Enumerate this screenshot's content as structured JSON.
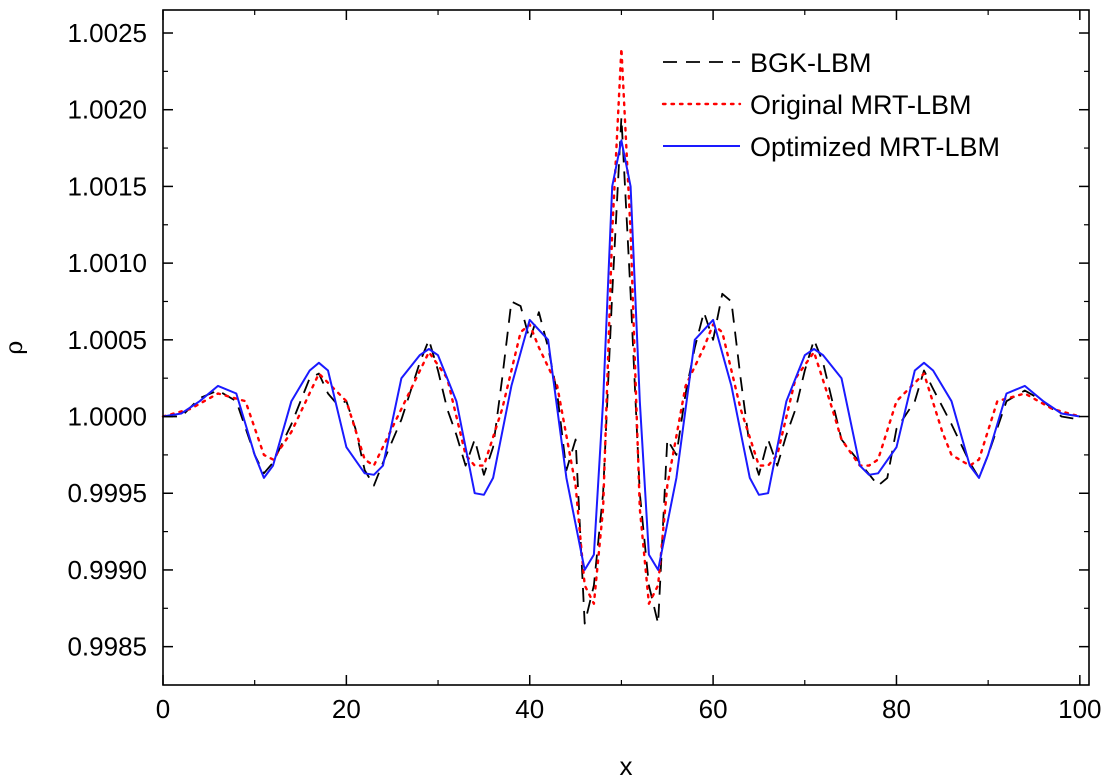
{
  "chart_data": {
    "type": "line",
    "title": "",
    "xlabel": "x",
    "ylabel": "ρ",
    "xlim": [
      0,
      101
    ],
    "ylim": [
      0.99825,
      1.00265
    ],
    "xticks": [
      0,
      20,
      40,
      60,
      80,
      100
    ],
    "xtick_labels": [
      "0",
      "20",
      "40",
      "60",
      "80",
      "100"
    ],
    "yticks": [
      0.9985,
      0.999,
      0.9995,
      1.0,
      1.0005,
      1.001,
      1.0015,
      1.002,
      1.0025
    ],
    "ytick_labels": [
      "0.9985",
      "0.9990",
      "0.9995",
      "1.0000",
      "1.0005",
      "1.0010",
      "1.0015",
      "1.0020",
      "1.0025"
    ],
    "grid": false,
    "legend_position": "top-right",
    "series": [
      {
        "name": "BGK-LBM",
        "color": "#000000",
        "style": "dashed",
        "x": [
          0,
          2,
          4,
          6,
          8,
          10,
          11,
          12,
          14,
          16,
          17,
          18,
          19,
          20,
          21,
          22,
          23,
          24,
          26,
          28,
          29,
          30,
          31,
          32,
          33,
          34,
          35,
          36,
          37,
          38,
          39,
          40,
          41,
          42,
          43,
          44,
          45,
          46,
          47,
          48,
          49,
          50,
          51,
          52,
          53,
          54,
          55,
          56,
          57,
          58,
          59,
          60,
          61,
          62,
          63,
          64,
          65,
          66,
          67,
          68,
          69,
          70,
          71,
          72,
          73,
          74,
          76,
          78,
          79,
          80,
          82,
          83,
          84,
          86,
          88,
          89,
          90,
          92,
          94,
          96,
          98,
          100
        ],
        "values": [
          1.0,
          1.0,
          1.00012,
          1.00017,
          1.0001,
          0.99975,
          0.99963,
          0.9997,
          0.99995,
          1.00025,
          1.00028,
          1.00015,
          1.00008,
          1.0001,
          0.99992,
          0.99965,
          0.99955,
          0.9997,
          0.99998,
          1.00035,
          1.0005,
          1.0003,
          1.00005,
          0.99988,
          0.99968,
          0.99985,
          0.99962,
          0.9998,
          1.00025,
          1.00075,
          1.00072,
          1.0005,
          1.00068,
          1.00045,
          1.00015,
          0.99965,
          0.99985,
          0.99865,
          0.9989,
          0.9995,
          1.0008,
          1.00195,
          1.0008,
          0.9995,
          0.9989,
          0.99865,
          0.99985,
          0.99975,
          1.00015,
          1.00045,
          1.00068,
          1.0005,
          1.0008,
          1.00075,
          1.00025,
          0.9998,
          0.99962,
          0.99985,
          0.99968,
          0.99988,
          1.00005,
          1.0003,
          1.0005,
          1.00035,
          1.0001,
          0.99985,
          0.9997,
          0.99955,
          0.9996,
          0.99992,
          1.0001,
          1.0003,
          1.00018,
          0.99995,
          0.9997,
          0.9996,
          0.99975,
          1.0001,
          1.00017,
          1.0001,
          1.0,
          0.99998
        ]
      },
      {
        "name": "Original MRT-LBM",
        "color": "#ff0000",
        "style": "dotted",
        "x": [
          0,
          3,
          6,
          9,
          11,
          12,
          14,
          17,
          20,
          22,
          23,
          26,
          29,
          31,
          33,
          34,
          35,
          37,
          39,
          40,
          41,
          43,
          45,
          46,
          47,
          48,
          49,
          50,
          51,
          52,
          53,
          54,
          55,
          57,
          59,
          60,
          61,
          63,
          65,
          66,
          67,
          69,
          71,
          73,
          74,
          76,
          77,
          78,
          80,
          83,
          85,
          86,
          88,
          89,
          91,
          94,
          97,
          100
        ],
        "values": [
          1.0,
          1.00005,
          1.00015,
          1.0001,
          0.99975,
          0.99972,
          0.9999,
          1.00028,
          1.0001,
          0.99972,
          0.99968,
          1.00005,
          1.00042,
          1.00025,
          0.99975,
          0.99968,
          0.99968,
          1.00005,
          1.00055,
          1.0006,
          1.00045,
          1.0002,
          0.99955,
          0.9989,
          0.99878,
          0.9994,
          1.0012,
          1.0024,
          1.0012,
          0.9994,
          0.99878,
          0.9989,
          0.99955,
          1.0002,
          1.00045,
          1.0006,
          1.00055,
          1.00005,
          0.99968,
          0.99968,
          0.99975,
          1.00025,
          1.00042,
          1.00005,
          0.99985,
          0.99968,
          0.99968,
          0.99972,
          1.0001,
          1.00028,
          0.9999,
          0.99975,
          0.99968,
          0.99972,
          1.0001,
          1.00015,
          1.00005,
          1.0
        ]
      },
      {
        "name": "Optimized MRT-LBM",
        "color": "#1a1aff",
        "style": "solid",
        "x": [
          0,
          2,
          4,
          6,
          8,
          10,
          11,
          12,
          14,
          16,
          17,
          18,
          20,
          22,
          23,
          24,
          26,
          28,
          29,
          30,
          32,
          34,
          35,
          36,
          38,
          40,
          42,
          44,
          46,
          47,
          48,
          49,
          50,
          51,
          52,
          53,
          54,
          56,
          58,
          60,
          62,
          64,
          65,
          66,
          68,
          70,
          71,
          72,
          74,
          76,
          77,
          78,
          80,
          82,
          83,
          84,
          86,
          88,
          89,
          90,
          92,
          94,
          96,
          98,
          100
        ],
        "values": [
          1.0,
          1.00002,
          1.0001,
          1.0002,
          1.00015,
          0.99975,
          0.9996,
          0.99968,
          1.0001,
          1.0003,
          1.00035,
          1.0003,
          0.9998,
          0.99963,
          0.99962,
          0.99968,
          1.00025,
          1.0004,
          1.00044,
          1.0004,
          1.0001,
          0.9995,
          0.99949,
          0.9996,
          1.0002,
          1.00063,
          1.0005,
          0.9996,
          0.999,
          0.9991,
          1.0001,
          1.0015,
          1.0018,
          1.0015,
          1.0001,
          0.9991,
          0.999,
          0.9996,
          1.0005,
          1.00063,
          1.0002,
          0.9996,
          0.99949,
          0.9995,
          1.0001,
          1.0004,
          1.00044,
          1.0004,
          1.00025,
          0.99968,
          0.99962,
          0.99963,
          0.9998,
          1.0003,
          1.00035,
          1.0003,
          1.0001,
          0.99968,
          0.9996,
          0.99975,
          1.00015,
          1.0002,
          1.0001,
          1.00002,
          1.0
        ]
      }
    ]
  }
}
